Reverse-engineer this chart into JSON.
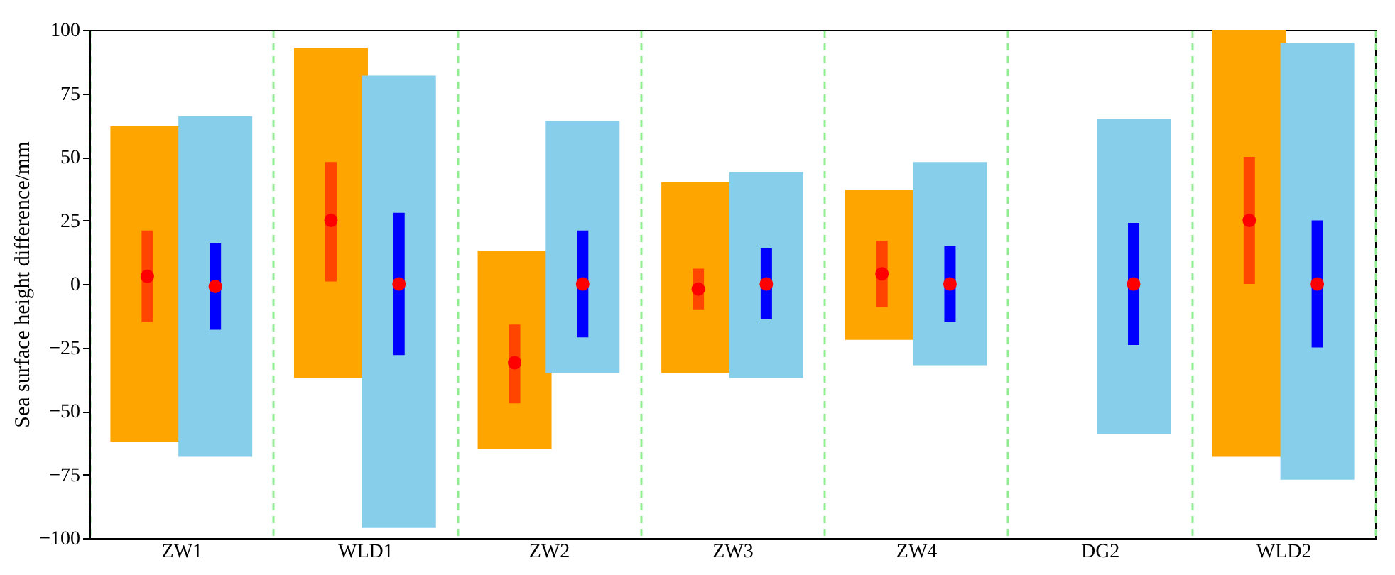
{
  "chart_data": {
    "type": "box",
    "ylabel": "Sea surface height difference/mm",
    "categories": [
      "ZW1",
      "WLD1",
      "ZW2",
      "ZW3",
      "ZW4",
      "DG2",
      "WLD2"
    ],
    "ylim": [
      -100,
      100
    ],
    "yticks": [
      -100,
      -75,
      -50,
      -25,
      0,
      25,
      50,
      75,
      100
    ],
    "grid": "x",
    "series": [
      {
        "color": "#ff4500",
        "boxes": [
          {
            "low": -62,
            "q1": -15,
            "median": 3,
            "q3": 21,
            "high": 62
          },
          {
            "low": -37,
            "q1": 1,
            "median": 25,
            "q3": 48,
            "high": 93
          },
          {
            "low": -65,
            "q1": -47,
            "median": -31,
            "q3": -16,
            "high": 13
          },
          {
            "low": -35,
            "q1": -10,
            "median": -2,
            "q3": 6,
            "high": 40
          },
          {
            "low": -22,
            "q1": -9,
            "median": 4,
            "q3": 17,
            "high": 37
          },
          null,
          {
            "low": -68,
            "q1": 0,
            "median": 25,
            "q3": 50,
            "high": 100
          }
        ]
      },
      {
        "color": "#0000ff",
        "boxes": [
          {
            "low": -68,
            "q1": -18,
            "median": -1,
            "q3": 16,
            "high": 66
          },
          {
            "low": -96,
            "q1": -28,
            "median": 0,
            "q3": 28,
            "high": 82
          },
          {
            "low": -35,
            "q1": -21,
            "median": 0,
            "q3": 21,
            "high": 64
          },
          {
            "low": -37,
            "q1": -14,
            "median": 0,
            "q3": 14,
            "high": 44
          },
          {
            "low": -32,
            "q1": -15,
            "median": 0,
            "q3": 15,
            "high": 48
          },
          {
            "low": -59,
            "q1": -24,
            "median": 0,
            "q3": 24,
            "high": 65
          },
          {
            "low": -77,
            "q1": -25,
            "median": 0,
            "q3": 25,
            "high": 95
          }
        ]
      }
    ]
  }
}
